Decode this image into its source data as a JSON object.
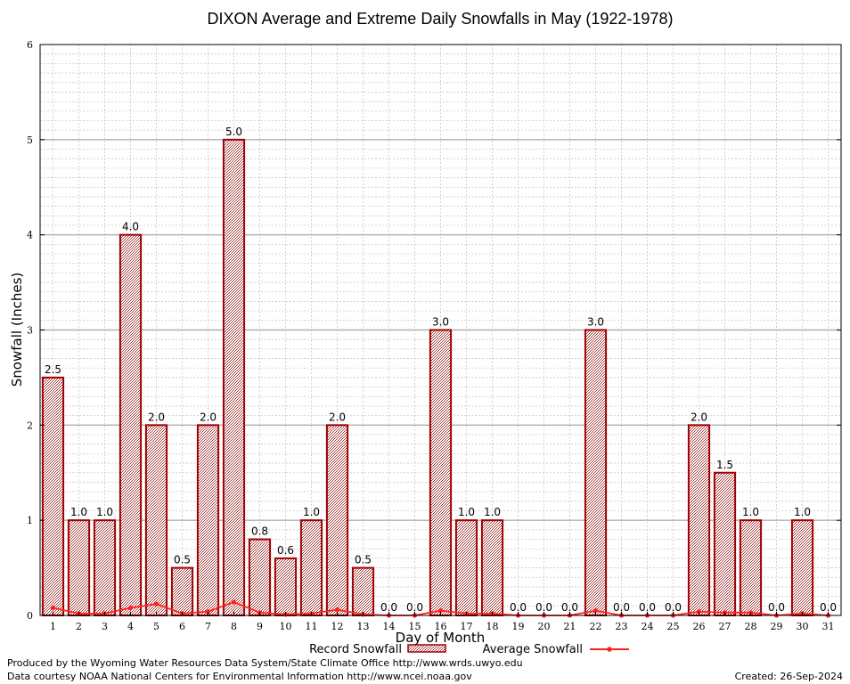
{
  "chart_data": {
    "type": "bar",
    "title": "DIXON Average and Extreme Daily Snowfalls in May (1922-1978)",
    "xlabel": "Day of Month",
    "ylabel": "Snowfall (Inches)",
    "ylim": [
      0,
      6
    ],
    "yticks": [
      "0",
      "1",
      "2",
      "3",
      "4",
      "5",
      "6"
    ],
    "grid": true,
    "legend_position": "bottom",
    "categories": [
      "1",
      "2",
      "3",
      "4",
      "5",
      "6",
      "7",
      "8",
      "9",
      "10",
      "11",
      "12",
      "13",
      "14",
      "15",
      "16",
      "17",
      "18",
      "19",
      "20",
      "21",
      "22",
      "23",
      "24",
      "25",
      "26",
      "27",
      "28",
      "29",
      "30",
      "31"
    ],
    "series": [
      {
        "name": "Record Snowfall",
        "type": "bar",
        "color": "#a00000",
        "values": [
          2.5,
          1.0,
          1.0,
          4.0,
          2.0,
          0.5,
          2.0,
          5.0,
          0.8,
          0.6,
          1.0,
          2.0,
          0.5,
          0.0,
          0.0,
          3.0,
          1.0,
          1.0,
          0.0,
          0.0,
          0.0,
          3.0,
          0.0,
          0.0,
          0.0,
          2.0,
          1.5,
          1.0,
          0.0,
          1.0,
          0.0
        ],
        "labels": [
          "2.5",
          "1.0",
          "1.0",
          "4.0",
          "2.0",
          "0.5",
          "2.0",
          "5.0",
          "0.8",
          "0.6",
          "1.0",
          "2.0",
          "0.5",
          "0.0",
          "0.0",
          "3.0",
          "1.0",
          "1.0",
          "0.0",
          "0.0",
          "0.0",
          "3.0",
          "0.0",
          "0.0",
          "0.0",
          "2.0",
          "1.5",
          "1.0",
          "0.0",
          "1.0",
          "0.0"
        ]
      },
      {
        "name": "Average Snowfall",
        "type": "line",
        "color": "#ff2020",
        "values": [
          0.08,
          0.02,
          0.02,
          0.08,
          0.12,
          0.02,
          0.04,
          0.14,
          0.03,
          0.01,
          0.02,
          0.06,
          0.01,
          0.0,
          0.0,
          0.05,
          0.02,
          0.02,
          0.0,
          0.0,
          0.0,
          0.05,
          0.0,
          0.0,
          0.0,
          0.04,
          0.03,
          0.03,
          0.0,
          0.02,
          0.0
        ]
      }
    ]
  },
  "footer": {
    "producer": "Produced by the Wyoming Water Resources Data System/State Climate Office http://www.wrds.uwyo.edu",
    "courtesy": "Data courtesy NOAA National Centers for Environmental Information http://www.ncei.noaa.gov",
    "created": "Created: 26-Sep-2024"
  }
}
